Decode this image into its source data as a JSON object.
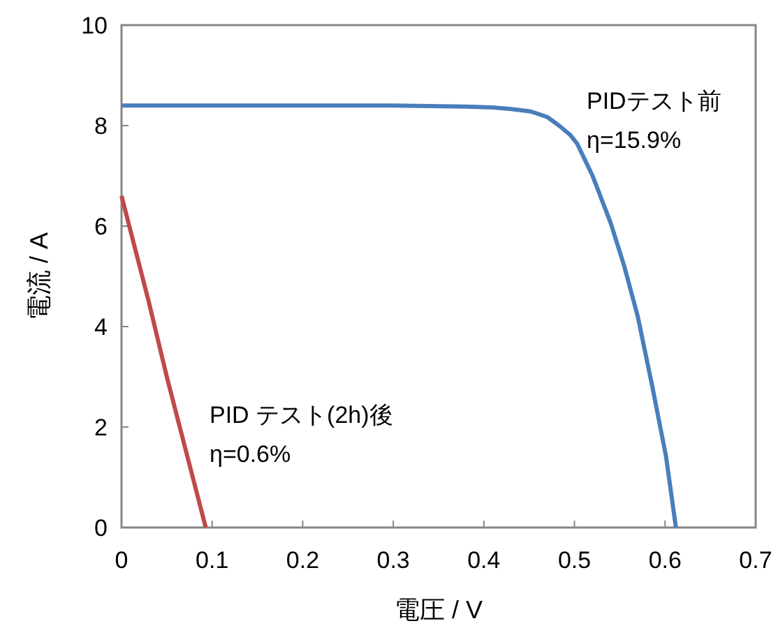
{
  "chart_data": {
    "type": "line",
    "xlabel": "電圧 / V",
    "ylabel": "電流 / A",
    "xlim": [
      0,
      0.7
    ],
    "ylim": [
      0,
      10
    ],
    "xticks": [
      0,
      0.1,
      0.2,
      0.3,
      0.4,
      0.5,
      0.6,
      0.7
    ],
    "yticks": [
      0,
      2,
      4,
      6,
      8,
      10
    ],
    "grid": false,
    "marker": "none",
    "line_style": "solid",
    "series": [
      {
        "name": "PIDテスト前",
        "color": "#4a7ebb",
        "x": [
          0,
          0.1,
          0.2,
          0.3,
          0.38,
          0.41,
          0.43,
          0.452,
          0.47,
          0.483,
          0.495,
          0.503,
          0.52,
          0.54,
          0.555,
          0.57,
          0.586,
          0.601,
          0.612
        ],
        "values": [
          8.4,
          8.4,
          8.4,
          8.4,
          8.38,
          8.36,
          8.33,
          8.28,
          8.17,
          8.0,
          7.82,
          7.64,
          7.0,
          6.06,
          5.2,
          4.19,
          2.8,
          1.42,
          0
        ]
      },
      {
        "name": "PID テスト(2h)後",
        "color": "#be4b48",
        "x": [
          0,
          0.01,
          0.03,
          0.05,
          0.07,
          0.093
        ],
        "values": [
          6.6,
          5.9,
          4.5,
          3.0,
          1.6,
          0
        ]
      }
    ],
    "annotations": [
      "η=15.9%",
      "η=0.6%"
    ]
  }
}
